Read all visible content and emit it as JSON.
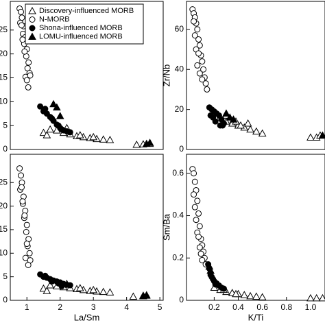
{
  "chart_data": [
    {
      "type": "scatter",
      "legend": "upper left",
      "xlim": [
        0.5,
        5.1
      ],
      "ylim": [
        0,
        31
      ],
      "yticks": [
        0,
        5,
        10,
        15,
        20,
        25
      ],
      "series": [
        {
          "name": "Discovery-influenced MORB",
          "marker": "triangle-open",
          "color": "#000000",
          "x": [
            1.5,
            1.7,
            1.9,
            2.1,
            2.3,
            2.5,
            2.7,
            2.9,
            3.1,
            3.3,
            3.5,
            4.3,
            4.5,
            4.7,
            1.6,
            2.2,
            2.6,
            3.0
          ],
          "values": [
            3.5,
            4.2,
            4.0,
            3.5,
            3.2,
            2.8,
            2.6,
            2.4,
            2.2,
            2.1,
            2.0,
            1.0,
            1.1,
            1.2,
            3.0,
            4.5,
            3.0,
            2.6
          ]
        },
        {
          "name": "N-MORB",
          "marker": "circle-open",
          "color": "#000000",
          "x": [
            0.78,
            0.82,
            0.85,
            0.8,
            0.9,
            0.88,
            0.95,
            0.92,
            1.0,
            0.98,
            1.05,
            1.02,
            0.87,
            0.93,
            1.08,
            0.96,
            1.1,
            0.84,
            1.0,
            1.04
          ],
          "values": [
            29.5,
            28.8,
            27.6,
            26.5,
            25.8,
            24.2,
            23.5,
            22.1,
            21.0,
            19.5,
            18.2,
            17.0,
            23.0,
            20.5,
            16.0,
            15.2,
            15.5,
            26.0,
            14.5,
            13.0
          ]
        },
        {
          "name": "Shona-influenced MORB",
          "marker": "circle",
          "color": "#000000",
          "x": [
            1.4,
            1.5,
            1.6,
            1.7,
            1.8,
            1.9,
            2.0,
            2.1,
            2.2,
            2.3,
            1.55,
            1.75,
            1.95,
            2.05
          ],
          "values": [
            9.0,
            8.0,
            7.5,
            6.8,
            6.0,
            5.2,
            4.5,
            4.0,
            3.8,
            3.6,
            8.5,
            6.5,
            5.0,
            4.2
          ]
        },
        {
          "name": "LOMU-influenced MORB",
          "marker": "triangle",
          "color": "#000000",
          "x": [
            1.8,
            1.9,
            2.0,
            4.6,
            4.7
          ],
          "values": [
            9.5,
            8.8,
            7.0,
            1.2,
            1.4
          ]
        }
      ]
    },
    {
      "type": "scatter",
      "y_label": "Zr/Nb",
      "xlim": [
        -0.03,
        1.12
      ],
      "ylim": [
        0,
        74
      ],
      "yticks": [
        0,
        20,
        40,
        60
      ],
      "series": [
        {
          "marker": "triangle-open",
          "color": "#000000",
          "x": [
            0.2,
            0.25,
            0.3,
            0.35,
            0.4,
            0.45,
            0.5,
            0.55,
            0.6,
            0.3,
            0.38,
            0.42,
            1.0,
            1.05,
            1.08,
            0.48
          ],
          "values": [
            18,
            16,
            14,
            13,
            12,
            11,
            10,
            9,
            8,
            17,
            14,
            12,
            6,
            6,
            7,
            13
          ]
        },
        {
          "marker": "circle-open",
          "color": "#000000",
          "x": [
            0.02,
            0.03,
            0.04,
            0.05,
            0.06,
            0.04,
            0.07,
            0.08,
            0.05,
            0.09,
            0.1,
            0.06,
            0.03,
            0.11,
            0.12,
            0.08,
            0.13,
            0.07,
            0.14,
            0.1
          ],
          "values": [
            70,
            68,
            66,
            63,
            60,
            57,
            55,
            52,
            50,
            47,
            44,
            42,
            64,
            40,
            36,
            38,
            33,
            48,
            30,
            35
          ]
        },
        {
          "marker": "circle",
          "color": "#000000",
          "x": [
            0.16,
            0.18,
            0.2,
            0.22,
            0.24,
            0.26,
            0.28,
            0.17,
            0.21,
            0.25,
            0.19,
            0.27
          ],
          "values": [
            21,
            20,
            19,
            18,
            17,
            15,
            13,
            17,
            14,
            12,
            16,
            12
          ]
        },
        {
          "marker": "triangle",
          "color": "#000000",
          "x": [
            0.3,
            0.33,
            0.36,
            1.1
          ],
          "values": [
            18,
            16,
            15,
            7
          ]
        }
      ]
    },
    {
      "type": "scatter",
      "x_label": "La/Sm",
      "xlim": [
        0.5,
        5.1
      ],
      "ylim": [
        0,
        31
      ],
      "xticks": [
        1,
        2,
        3,
        4,
        5
      ],
      "yticks": [
        0,
        5,
        10,
        15,
        20,
        25
      ],
      "series": [
        {
          "marker": "triangle-open",
          "color": "#000000",
          "x": [
            1.5,
            1.7,
            1.9,
            2.1,
            2.3,
            2.5,
            2.7,
            2.9,
            3.1,
            3.3,
            3.5,
            4.2,
            4.5,
            4.6,
            1.6,
            2.2,
            2.6,
            3.0
          ],
          "values": [
            2.5,
            3.2,
            3.0,
            2.8,
            2.6,
            2.4,
            2.2,
            2.0,
            1.9,
            1.8,
            1.7,
            0.8,
            0.9,
            1.0,
            2.0,
            3.5,
            2.6,
            2.2
          ]
        },
        {
          "marker": "circle-open",
          "color": "#000000",
          "x": [
            0.78,
            0.82,
            0.85,
            0.8,
            0.9,
            0.88,
            0.95,
            0.92,
            1.0,
            0.98,
            1.05,
            1.02,
            0.87,
            0.93,
            1.08,
            0.96,
            1.1,
            0.84,
            1.0,
            1.04
          ],
          "values": [
            28,
            26.5,
            25,
            23.5,
            22,
            20.5,
            19,
            17.5,
            16,
            14.5,
            13,
            11.5,
            21,
            18,
            10,
            9,
            8.5,
            24,
            12,
            7.5
          ]
        },
        {
          "marker": "circle",
          "color": "#000000",
          "x": [
            1.4,
            1.5,
            1.6,
            1.7,
            1.8,
            1.9,
            2.0,
            2.1,
            2.2,
            2.3,
            1.55,
            1.75,
            1.95,
            2.05
          ],
          "values": [
            5.5,
            5.0,
            4.8,
            4.5,
            4.2,
            4.0,
            3.8,
            3.5,
            3.3,
            3.2,
            5.2,
            4.0,
            3.6,
            3.0
          ]
        },
        {
          "marker": "triangle",
          "color": "#000000",
          "x": [
            4.5,
            4.6
          ],
          "values": [
            1.0,
            1.1
          ]
        }
      ]
    },
    {
      "type": "scatter",
      "x_label": "K/Ti",
      "y_label": "Sm/Ba",
      "xlim": [
        -0.03,
        1.12
      ],
      "ylim": [
        0,
        0.69
      ],
      "xticks": [
        0.2,
        0.4,
        0.6,
        0.8,
        {
          "value": 1,
          "label": "1.0"
        }
      ],
      "yticks": [
        0,
        0.2,
        0.4,
        0.6
      ],
      "series": [
        {
          "marker": "triangle-open",
          "color": "#000000",
          "x": [
            0.2,
            0.25,
            0.3,
            0.35,
            0.4,
            0.45,
            0.5,
            0.55,
            0.6,
            1.0,
            1.05,
            1.1,
            0.28,
            0.38
          ],
          "values": [
            0.06,
            0.05,
            0.04,
            0.035,
            0.03,
            0.025,
            0.02,
            0.018,
            0.015,
            0.01,
            0.01,
            0.01,
            0.05,
            0.03
          ]
        },
        {
          "marker": "circle-open",
          "color": "#000000",
          "x": [
            0.02,
            0.03,
            0.04,
            0.05,
            0.03,
            0.06,
            0.04,
            0.07,
            0.05,
            0.08,
            0.06,
            0.09,
            0.1,
            0.07,
            0.11,
            0.08,
            0.12,
            0.09,
            0.13,
            0.1
          ],
          "values": [
            0.62,
            0.6,
            0.56,
            0.52,
            0.5,
            0.47,
            0.44,
            0.41,
            0.38,
            0.35,
            0.32,
            0.29,
            0.26,
            0.3,
            0.23,
            0.25,
            0.2,
            0.22,
            0.17,
            0.19
          ]
        },
        {
          "marker": "circle",
          "color": "#000000",
          "x": [
            0.15,
            0.16,
            0.17,
            0.18,
            0.19,
            0.2,
            0.22,
            0.24,
            0.26,
            0.28,
            0.17,
            0.21
          ],
          "values": [
            0.17,
            0.15,
            0.13,
            0.11,
            0.1,
            0.09,
            0.08,
            0.07,
            0.06,
            0.055,
            0.12,
            0.075
          ]
        },
        {
          "marker": "triangle",
          "color": "#000000",
          "x": [
            0.16,
            0.17
          ],
          "values": [
            0.16,
            0.14
          ]
        }
      ]
    }
  ]
}
